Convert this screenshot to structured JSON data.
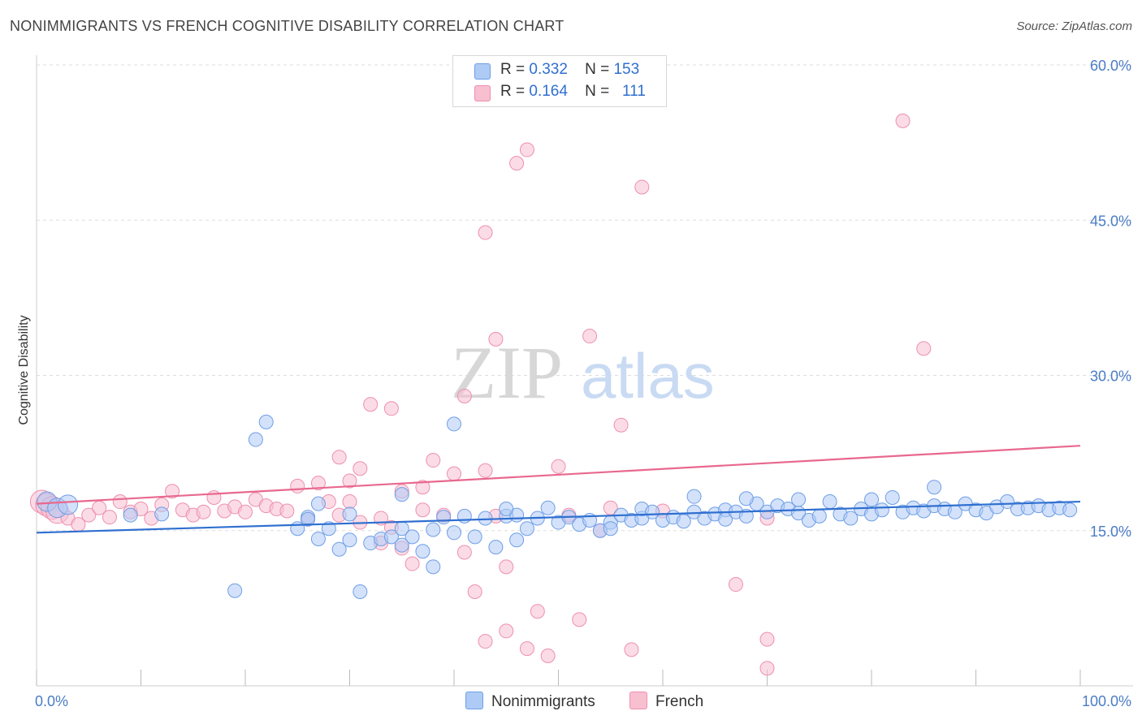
{
  "title": "NONIMMIGRANTS VS FRENCH COGNITIVE DISABILITY CORRELATION CHART",
  "source": "Source: ZipAtlas.com",
  "watermark": {
    "zip": "ZIP",
    "atlas": "atlas"
  },
  "legend": {
    "rows": [
      {
        "r_label": "R =",
        "r_value": "0.332",
        "n_label": "N =",
        "n_value": "153"
      },
      {
        "r_label": "R =",
        "r_value": "0.164",
        "n_label": "N =",
        "n_value": "111"
      }
    ]
  },
  "colors": {
    "blue_fill": "#aecbf5",
    "blue_stroke": "#6f9ee6",
    "blue_line": "#2f6fd0",
    "pink_fill": "#f8bfd1",
    "pink_stroke": "#ee8fae",
    "pink_line": "#e8688f",
    "tick_label": "#4a7cc7",
    "grid": "#dddddd"
  },
  "chart_data": {
    "type": "scatter",
    "ylabel": "Cognitive Disability",
    "xlim": [
      0,
      100
    ],
    "ylim": [
      0,
      60
    ],
    "x_tick_labels": [
      "0.0%",
      "100.0%"
    ],
    "y_ticks": [
      15,
      30,
      45,
      60
    ],
    "y_tick_labels": [
      "15.0%",
      "30.0%",
      "45.0%",
      "60.0%"
    ],
    "grid": "horizontal dashed",
    "legend_position": "top-center and bottom-center",
    "series": [
      {
        "name": "Nonimmigrants",
        "color": "#aecbf5",
        "trend": {
          "x": [
            0,
            100
          ],
          "y": [
            14.8,
            17.8
          ]
        },
        "points": [
          [
            1,
            17.8
          ],
          [
            2,
            17.2
          ],
          [
            3,
            17.5
          ],
          [
            9,
            16.5
          ],
          [
            12,
            16.6
          ],
          [
            19,
            9.2
          ],
          [
            21,
            23.8
          ],
          [
            22,
            25.5
          ],
          [
            25,
            15.2
          ],
          [
            26,
            16.3
          ],
          [
            27,
            17.6
          ],
          [
            27,
            14.2
          ],
          [
            28,
            15.2
          ],
          [
            29,
            13.2
          ],
          [
            30,
            16.6
          ],
          [
            30,
            14.1
          ],
          [
            31,
            9.1
          ],
          [
            32,
            13.8
          ],
          [
            33,
            14.2
          ],
          [
            34,
            14.4
          ],
          [
            35,
            18.5
          ],
          [
            35,
            15.2
          ],
          [
            36,
            14.4
          ],
          [
            37,
            13.0
          ],
          [
            38,
            11.5
          ],
          [
            38,
            15.1
          ],
          [
            39,
            16.3
          ],
          [
            40,
            14.8
          ],
          [
            41,
            16.4
          ],
          [
            40,
            25.3
          ],
          [
            42,
            14.4
          ],
          [
            43,
            16.2
          ],
          [
            44,
            13.4
          ],
          [
            45,
            16.4
          ],
          [
            46,
            14.1
          ],
          [
            46,
            16.5
          ],
          [
            47,
            15.2
          ],
          [
            48,
            16.2
          ],
          [
            49,
            17.2
          ],
          [
            50,
            15.8
          ],
          [
            51,
            16.3
          ],
          [
            52,
            15.6
          ],
          [
            53,
            16.0
          ],
          [
            54,
            15.0
          ],
          [
            55,
            15.8
          ],
          [
            56,
            16.5
          ],
          [
            57,
            16.0
          ],
          [
            58,
            16.2
          ],
          [
            58,
            17.1
          ],
          [
            59,
            16.8
          ],
          [
            60,
            16.0
          ],
          [
            61,
            16.3
          ],
          [
            62,
            15.9
          ],
          [
            63,
            16.8
          ],
          [
            64,
            16.2
          ],
          [
            65,
            16.6
          ],
          [
            66,
            17.0
          ],
          [
            66,
            16.1
          ],
          [
            67,
            16.8
          ],
          [
            68,
            16.4
          ],
          [
            69,
            17.6
          ],
          [
            70,
            16.8
          ],
          [
            71,
            17.4
          ],
          [
            72,
            17.1
          ],
          [
            73,
            16.7
          ],
          [
            74,
            16.0
          ],
          [
            75,
            16.4
          ],
          [
            76,
            17.8
          ],
          [
            77,
            16.6
          ],
          [
            78,
            16.2
          ],
          [
            79,
            17.1
          ],
          [
            80,
            16.6
          ],
          [
            81,
            17.0
          ],
          [
            82,
            18.2
          ],
          [
            83,
            16.8
          ],
          [
            84,
            17.2
          ],
          [
            85,
            16.9
          ],
          [
            86,
            17.4
          ],
          [
            87,
            17.1
          ],
          [
            88,
            16.8
          ],
          [
            89,
            17.6
          ],
          [
            90,
            17.0
          ],
          [
            91,
            16.7
          ],
          [
            92,
            17.3
          ],
          [
            93,
            17.8
          ],
          [
            94,
            17.1
          ],
          [
            95,
            17.2
          ],
          [
            96,
            17.4
          ],
          [
            97,
            17.0
          ],
          [
            98,
            17.2
          ],
          [
            99,
            17.0
          ],
          [
            68,
            18.1
          ],
          [
            63,
            18.3
          ],
          [
            73,
            18.0
          ],
          [
            86,
            19.2
          ],
          [
            80,
            18.0
          ],
          [
            55,
            15.2
          ],
          [
            45,
            17.1
          ],
          [
            35,
            13.6
          ],
          [
            26,
            16.1
          ]
        ]
      },
      {
        "name": "French",
        "color": "#f8bfd1",
        "trend": {
          "x": [
            0,
            100
          ],
          "y": [
            17.6,
            23.2
          ]
        },
        "points": [
          [
            0.5,
            17.8
          ],
          [
            1,
            17.5
          ],
          [
            1.5,
            17.2
          ],
          [
            2,
            16.8
          ],
          [
            3,
            16.2
          ],
          [
            4,
            15.6
          ],
          [
            5,
            16.5
          ],
          [
            6,
            17.2
          ],
          [
            7,
            16.3
          ],
          [
            8,
            17.8
          ],
          [
            9,
            16.8
          ],
          [
            10,
            17.1
          ],
          [
            11,
            16.2
          ],
          [
            12,
            17.5
          ],
          [
            13,
            18.8
          ],
          [
            14,
            17.0
          ],
          [
            15,
            16.5
          ],
          [
            16,
            16.8
          ],
          [
            17,
            18.2
          ],
          [
            18,
            16.9
          ],
          [
            19,
            17.3
          ],
          [
            20,
            16.8
          ],
          [
            21,
            18.0
          ],
          [
            22,
            17.4
          ],
          [
            23,
            17.1
          ],
          [
            24,
            16.9
          ],
          [
            25,
            19.3
          ],
          [
            26,
            16.1
          ],
          [
            27,
            19.6
          ],
          [
            28,
            17.8
          ],
          [
            29,
            22.1
          ],
          [
            30,
            19.8
          ],
          [
            30,
            17.8
          ],
          [
            31,
            21.0
          ],
          [
            32,
            27.2
          ],
          [
            33,
            13.8
          ],
          [
            34,
            26.8
          ],
          [
            34,
            15.3
          ],
          [
            35,
            18.8
          ],
          [
            36,
            11.8
          ],
          [
            37,
            19.2
          ],
          [
            38,
            21.8
          ],
          [
            39,
            16.5
          ],
          [
            40,
            20.5
          ],
          [
            41,
            12.9
          ],
          [
            41,
            28.0
          ],
          [
            42,
            9.1
          ],
          [
            43,
            20.8
          ],
          [
            43,
            4.3
          ],
          [
            44,
            16.4
          ],
          [
            44,
            33.5
          ],
          [
            45,
            11.5
          ],
          [
            45,
            5.3
          ],
          [
            46,
            50.5
          ],
          [
            47,
            51.8
          ],
          [
            48,
            7.2
          ],
          [
            49,
            2.9
          ],
          [
            50,
            21.2
          ],
          [
            51,
            16.5
          ],
          [
            52,
            6.4
          ],
          [
            53,
            33.8
          ],
          [
            54,
            15.0
          ],
          [
            55,
            17.2
          ],
          [
            56,
            25.2
          ],
          [
            57,
            3.5
          ],
          [
            58,
            48.2
          ],
          [
            60,
            16.9
          ],
          [
            67,
            9.8
          ],
          [
            70,
            16.2
          ],
          [
            70,
            4.5
          ],
          [
            70,
            1.7
          ],
          [
            83,
            54.6
          ],
          [
            85,
            32.6
          ],
          [
            43,
            43.8
          ],
          [
            47,
            3.6
          ],
          [
            37,
            17.0
          ],
          [
            35,
            13.3
          ],
          [
            33,
            16.2
          ],
          [
            31,
            15.8
          ],
          [
            29,
            16.5
          ]
        ]
      }
    ]
  },
  "bottom_legend": [
    {
      "label": "Nonimmigrants"
    },
    {
      "label": "French"
    }
  ]
}
